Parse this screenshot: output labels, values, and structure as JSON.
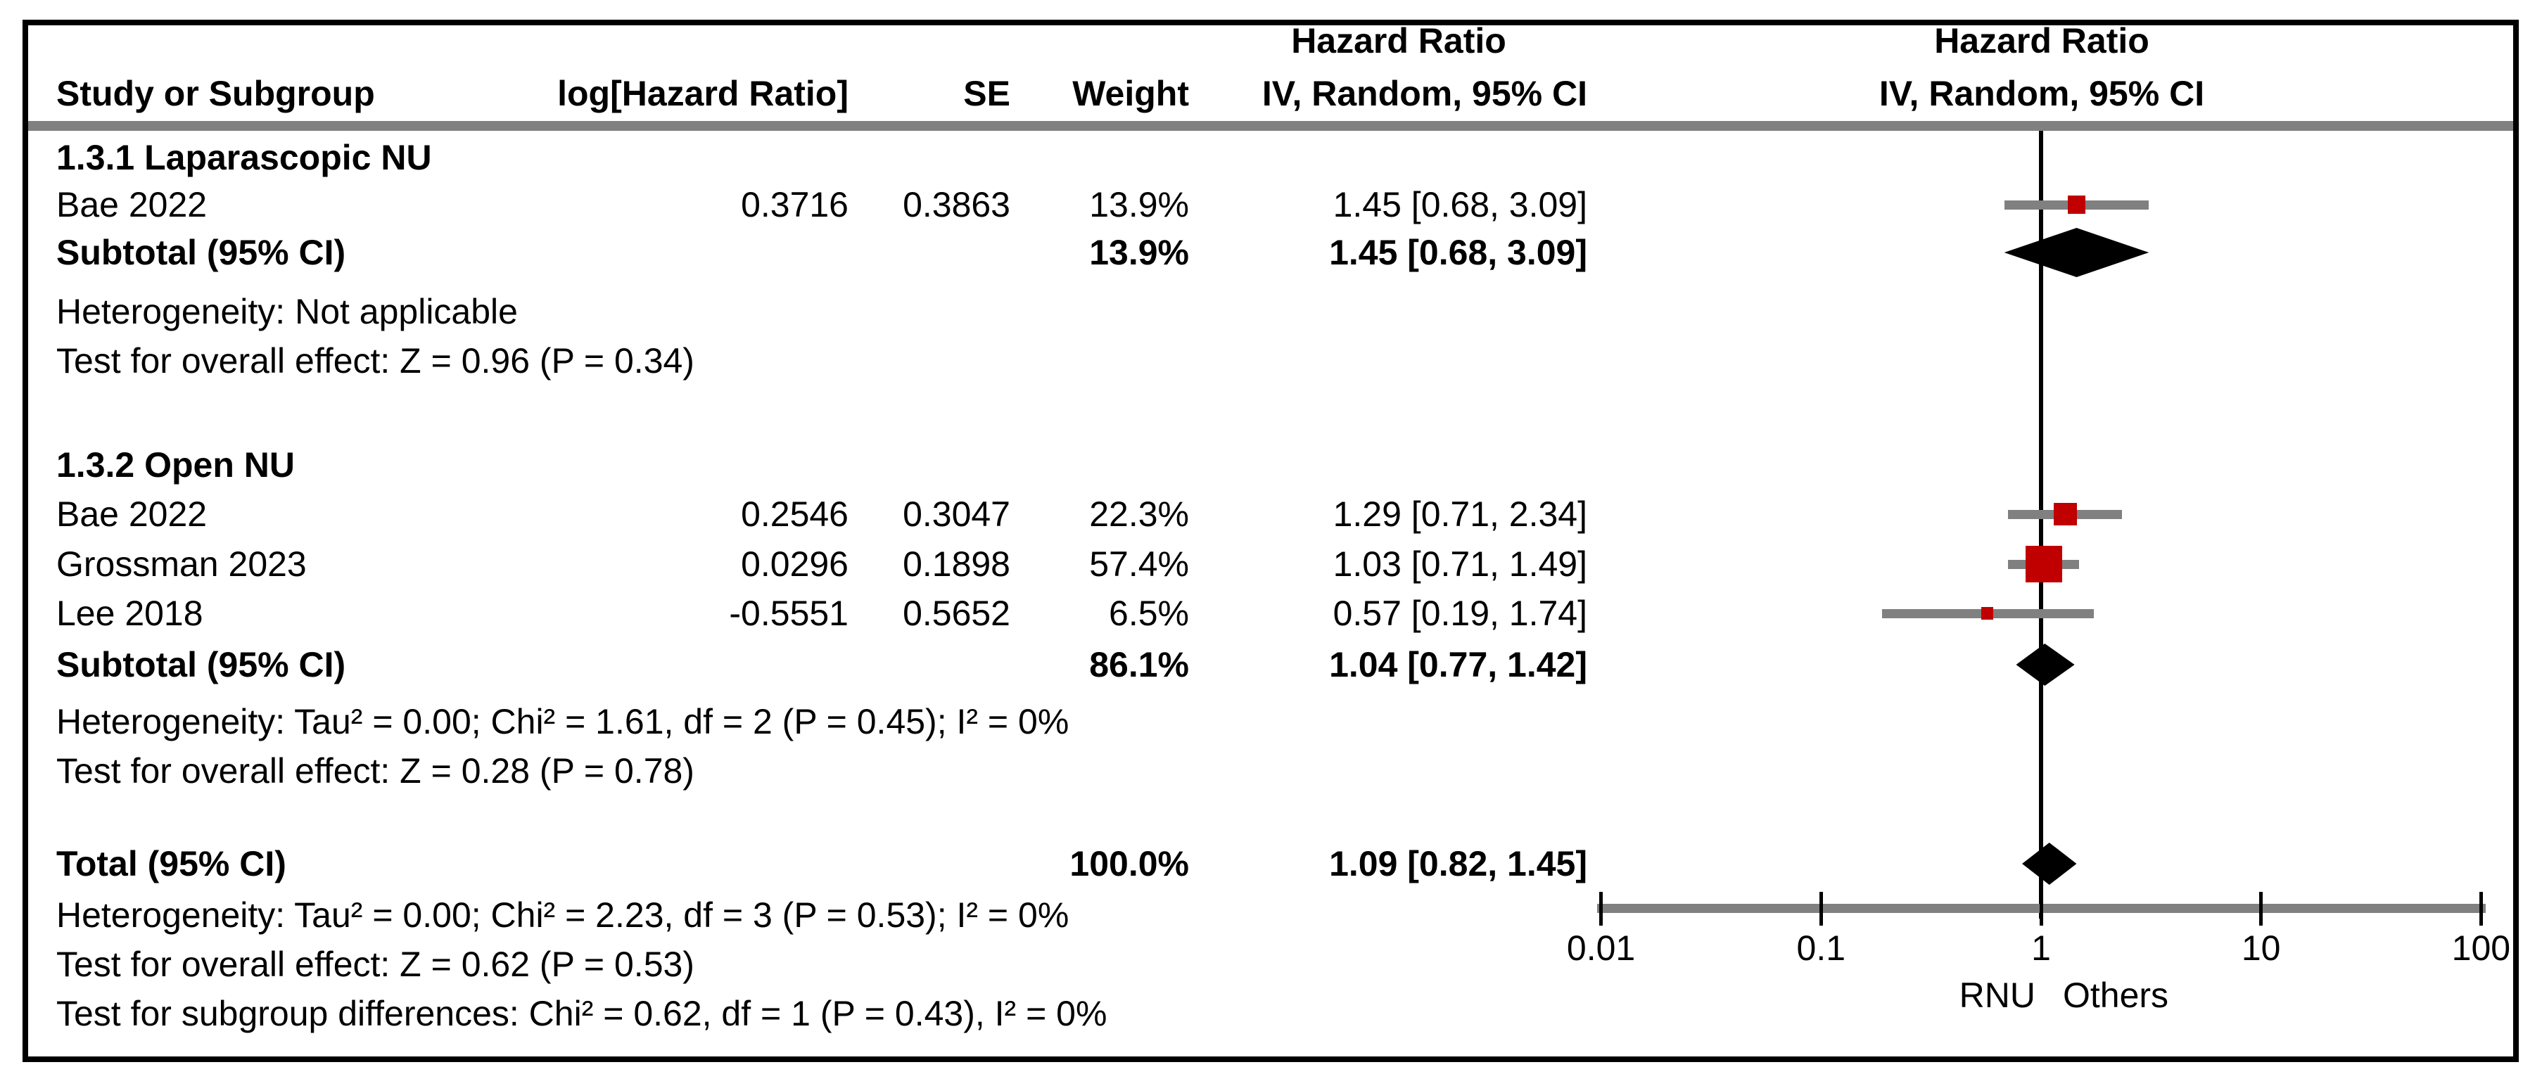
{
  "header": {
    "hazard_ratio_left": "Hazard Ratio",
    "hazard_ratio_right": "Hazard Ratio",
    "col_study": "Study or Subgroup",
    "col_log_hr": "log[Hazard Ratio]",
    "col_se": "SE",
    "col_weight": "Weight",
    "col_ci": "IV, Random, 95% CI",
    "col_ci_plot": "IV, Random, 95% CI"
  },
  "groups": [
    {
      "title": "1.3.1 Laparascopic NU",
      "studies": [
        {
          "name": "Bae 2022",
          "log_hr": "0.3716",
          "se": "0.3863",
          "weight": "13.9%",
          "ci": "1.45 [0.68, 3.09]"
        }
      ],
      "subtotal": {
        "label": "Subtotal (95% CI)",
        "weight": "13.9%",
        "ci": "1.45 [0.68, 3.09]"
      },
      "heterogeneity": "Heterogeneity: Not applicable",
      "overall_effect": "Test for overall effect: Z = 0.96 (P = 0.34)"
    },
    {
      "title": "1.3.2 Open NU",
      "studies": [
        {
          "name": "Bae 2022",
          "log_hr": "0.2546",
          "se": "0.3047",
          "weight": "22.3%",
          "ci": "1.29 [0.71, 2.34]"
        },
        {
          "name": "Grossman 2023",
          "log_hr": "0.0296",
          "se": "0.1898",
          "weight": "57.4%",
          "ci": "1.03 [0.71, 1.49]"
        },
        {
          "name": "Lee 2018",
          "log_hr": "-0.5551",
          "se": "0.5652",
          "weight": "6.5%",
          "ci": "0.57 [0.19, 1.74]"
        }
      ],
      "subtotal": {
        "label": "Subtotal (95% CI)",
        "weight": "86.1%",
        "ci": "1.04 [0.77, 1.42]"
      },
      "heterogeneity": "Heterogeneity: Tau² = 0.00; Chi² = 1.61, df = 2 (P = 0.45); I² = 0%",
      "overall_effect": "Test for overall effect: Z = 0.28 (P = 0.78)"
    }
  ],
  "total": {
    "label": "Total (95% CI)",
    "weight": "100.0%",
    "ci": "1.09 [0.82, 1.45]"
  },
  "footer": {
    "heterogeneity": "Heterogeneity: Tau² = 0.00; Chi² = 2.23, df = 3 (P = 0.53); I² = 0%",
    "overall_effect": "Test for overall effect: Z = 0.62 (P = 0.53)",
    "subgroup_differences": "Test for subgroup differences: Chi² = 0.62, df = 1 (P = 0.43), I² = 0%"
  },
  "axis": {
    "tick_labels": [
      "0.01",
      "0.1",
      "1",
      "10",
      "100"
    ],
    "left_label": "RNU",
    "right_label": "Others"
  },
  "colors": {
    "marker_red": "#c00000",
    "bar_gray": "#808080",
    "diamond_black": "#000000"
  },
  "chart_data": {
    "type": "forest",
    "effect_measure": "Hazard Ratio",
    "model": "IV, Random, 95% CI",
    "scale": "log10",
    "x_ticks": [
      0.01,
      0.1,
      1,
      10,
      100
    ],
    "xlim": [
      0.01,
      100
    ],
    "null_line": 1,
    "xlabel_left": "RNU",
    "xlabel_right": "Others",
    "groups": [
      {
        "name": "1.3.1 Laparascopic NU",
        "studies": [
          {
            "label": "Bae 2022",
            "log_hr": 0.3716,
            "se": 0.3863,
            "hr": 1.45,
            "ci_low": 0.68,
            "ci_high": 3.09,
            "weight_pct": 13.9
          }
        ],
        "subtotal": {
          "hr": 1.45,
          "ci_low": 0.68,
          "ci_high": 3.09,
          "weight_pct": 13.9,
          "heterogeneity": "Not applicable",
          "z": 0.96,
          "p": 0.34
        }
      },
      {
        "name": "1.3.2 Open NU",
        "studies": [
          {
            "label": "Bae 2022",
            "log_hr": 0.2546,
            "se": 0.3047,
            "hr": 1.29,
            "ci_low": 0.71,
            "ci_high": 2.34,
            "weight_pct": 22.3
          },
          {
            "label": "Grossman 2023",
            "log_hr": 0.0296,
            "se": 0.1898,
            "hr": 1.03,
            "ci_low": 0.71,
            "ci_high": 1.49,
            "weight_pct": 57.4
          },
          {
            "label": "Lee 2018",
            "log_hr": -0.5551,
            "se": 0.5652,
            "hr": 0.57,
            "ci_low": 0.19,
            "ci_high": 1.74,
            "weight_pct": 6.5
          }
        ],
        "subtotal": {
          "hr": 1.04,
          "ci_low": 0.77,
          "ci_high": 1.42,
          "weight_pct": 86.1,
          "tau2": 0.0,
          "chi2": 1.61,
          "df": 2,
          "p_het": 0.45,
          "i2_pct": 0,
          "z": 0.28,
          "p": 0.78
        }
      }
    ],
    "total": {
      "hr": 1.09,
      "ci_low": 0.82,
      "ci_high": 1.45,
      "weight_pct": 100.0,
      "tau2": 0.0,
      "chi2": 2.23,
      "df": 3,
      "p_het": 0.53,
      "i2_pct": 0,
      "z": 0.62,
      "p": 0.53
    },
    "subgroup_differences": {
      "chi2": 0.62,
      "df": 1,
      "p": 0.43,
      "i2_pct": 0
    }
  }
}
